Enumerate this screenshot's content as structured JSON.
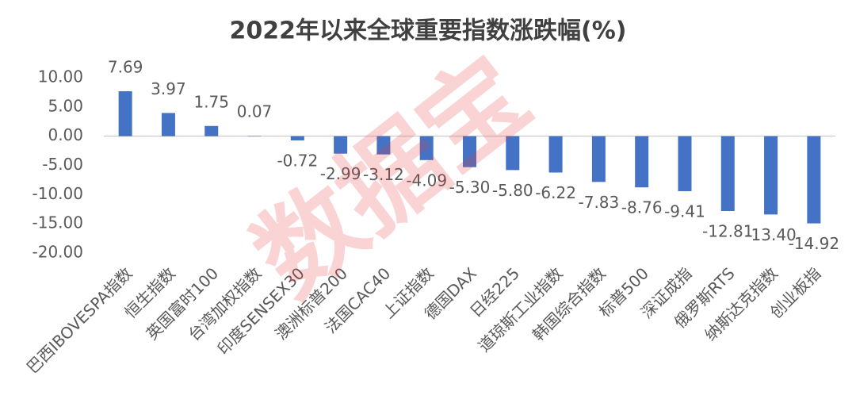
{
  "chart_data": {
    "type": "bar",
    "title": "2022年以来全球重要指数涨跌幅(%)",
    "watermark": "数据宝",
    "categories": [
      "巴西IBOVESPA指数",
      "恒生指数",
      "英国富时100",
      "台湾加权指数",
      "印度SENSEX30",
      "澳洲标普200",
      "法国CAC40",
      "上证指数",
      "德国DAX",
      "日经225",
      "道琼斯工业指数",
      "韩国综合指数",
      "标普500",
      "深证成指",
      "俄罗斯RTS",
      "纳斯达克指数",
      "创业板指"
    ],
    "values": [
      7.69,
      3.97,
      1.75,
      0.07,
      -0.72,
      -2.99,
      -3.12,
      -4.09,
      -5.3,
      -5.8,
      -6.22,
      -7.83,
      -8.76,
      -9.41,
      -12.81,
      -13.4,
      -14.92
    ],
    "value_labels": [
      "7.69",
      "3.97",
      "1.75",
      "0.07",
      "-0.72",
      "-2.99",
      "-3.12",
      "-4.09",
      "-5.30",
      "-5.80",
      "-6.22",
      "-7.83",
      "-8.76",
      "-9.41",
      "-12.81",
      "-13.40",
      "-14.92"
    ],
    "color": "#4472c4",
    "ylim": [
      -20,
      10
    ],
    "yticks": [
      {
        "value": 10,
        "label": "10.00"
      },
      {
        "value": 5,
        "label": "5.00"
      },
      {
        "value": 0,
        "label": "0.00"
      },
      {
        "value": -5,
        "label": "-5.00"
      },
      {
        "value": -10,
        "label": "-10.00"
      },
      {
        "value": -15,
        "label": "-15.00"
      },
      {
        "value": -20,
        "label": "-20.00"
      }
    ],
    "grid": false
  }
}
